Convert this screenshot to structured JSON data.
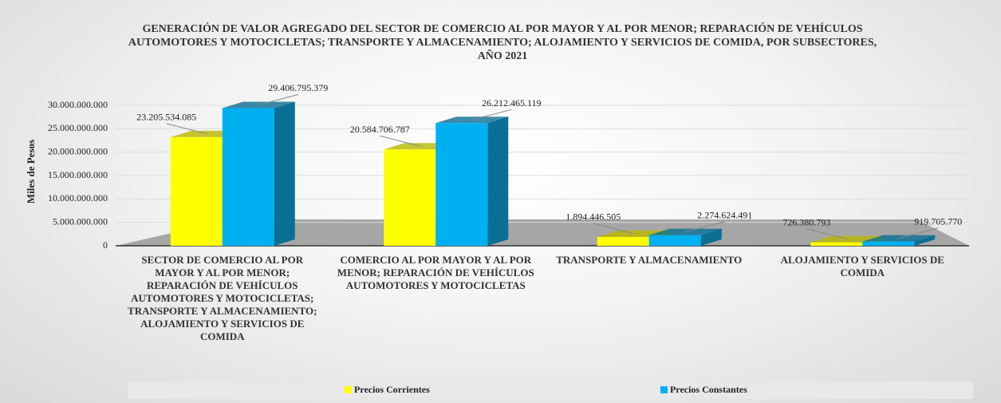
{
  "chart_data": {
    "type": "bar",
    "title": "GENERACIÓN DE VALOR AGREGADO DEL SECTOR DE COMERCIO AL POR MAYOR Y AL POR MENOR; REPARACIÓN DE VEHÍCULOS AUTOMOTORES Y MOTOCICLETAS; TRANSPORTE Y ALMACENAMIENTO; ALOJAMIENTO Y SERVICIOS DE COMIDA, POR SUBSECTORES, AÑO 2021",
    "y_label": "Miles de Pesos",
    "categories": [
      "SECTOR DE COMERCIO AL POR MAYOR Y AL POR MENOR; REPARACIÓN DE VEHÍCULOS AUTOMOTORES Y MOTOCICLETAS; TRANSPORTE Y ALMACENAMIENTO; ALOJAMIENTO Y SERVICIOS DE COMIDA",
      "COMERCIO AL POR MAYOR Y AL POR MENOR; REPARACIÓN DE VEHÍCULOS AUTOMOTORES Y MOTOCICLETAS",
      "TRANSPORTE Y ALMACENAMIENTO",
      "ALOJAMIENTO Y SERVICIOS DE COMIDA"
    ],
    "series": [
      {
        "name": "Precios Corrientes",
        "color": "#ffff00",
        "side_color": "#b8b800",
        "values": [
          23205534085,
          20584706787,
          1894446505,
          726380793
        ],
        "value_labels": [
          "23.205.534.085",
          "20.584.706.787",
          "1.894.446.505",
          "726.380.793"
        ]
      },
      {
        "name": "Precios Constantes",
        "color": "#00b0f0",
        "side_color": "#0a6f94",
        "values": [
          29406795379,
          26212465119,
          2274624491,
          919705770
        ],
        "value_labels": [
          "29.406.795.379",
          "26.212.465.119",
          "2.274.624.491",
          "919.705.770"
        ]
      }
    ],
    "ylim": [
      0,
      30000000000
    ],
    "yticks": [
      0,
      {
        "value": 5000000000,
        "label": "5.000.000.000"
      },
      {
        "value": 10000000000,
        "label": "10.000.000.000"
      },
      {
        "value": 15000000000,
        "label": "15.000.000.000"
      },
      {
        "value": 20000000000,
        "label": "20.000.000.000"
      },
      {
        "value": 25000000000,
        "label": "25.000.000.000"
      },
      {
        "value": 30000000000,
        "label": "30.000.000.000"
      }
    ],
    "grid": true,
    "legend": "bottom"
  }
}
